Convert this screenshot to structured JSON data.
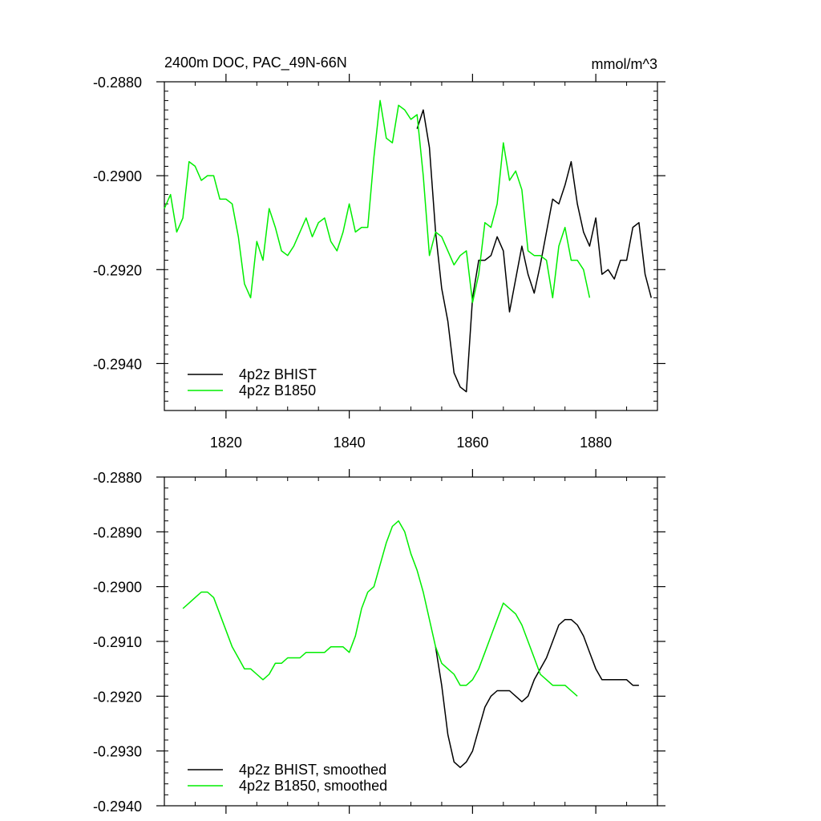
{
  "chart_data": [
    {
      "type": "line",
      "title": "2400m DOC, PAC_49N-66N",
      "title_right": "mmol/m^3",
      "xlim": [
        1810,
        1890
      ],
      "ylim": [
        -0.295,
        -0.288
      ],
      "x_ticks": [
        1820,
        1840,
        1860,
        1880
      ],
      "x_tick_labels": [
        "1820",
        "1840",
        "1860",
        "1880"
      ],
      "y_ticks": [
        -0.288,
        -0.29,
        -0.292,
        -0.294
      ],
      "y_tick_labels": [
        "-0.2880",
        "-0.2900",
        "-0.2920",
        "-0.2940"
      ],
      "legend_position": "bottom-left",
      "series": [
        {
          "name": "4p2z BHIST",
          "color": "#000000",
          "x": [
            1851,
            1852,
            1853,
            1854,
            1855,
            1856,
            1857,
            1858,
            1859,
            1860,
            1861,
            1862,
            1863,
            1864,
            1865,
            1866,
            1867,
            1868,
            1869,
            1870,
            1871,
            1872,
            1873,
            1874,
            1875,
            1876,
            1877,
            1878,
            1879,
            1880,
            1881,
            1882,
            1883,
            1884,
            1885,
            1886,
            1887,
            1888,
            1889
          ],
          "y": [
            -0.289,
            -0.2886,
            -0.2894,
            -0.2912,
            -0.2924,
            -0.2931,
            -0.2942,
            -0.2945,
            -0.2946,
            -0.2926,
            -0.2918,
            -0.2918,
            -0.2917,
            -0.2913,
            -0.2916,
            -0.2929,
            -0.2922,
            -0.2915,
            -0.2921,
            -0.2925,
            -0.2919,
            -0.2912,
            -0.2905,
            -0.2906,
            -0.2902,
            -0.2897,
            -0.2906,
            -0.2912,
            -0.2915,
            -0.2909,
            -0.2921,
            -0.292,
            -0.2922,
            -0.2918,
            -0.2918,
            -0.2911,
            -0.291,
            -0.2921,
            -0.2926
          ]
        },
        {
          "name": "4p2z B1850",
          "color": "#00ee00",
          "x": [
            1810,
            1811,
            1812,
            1813,
            1814,
            1815,
            1816,
            1817,
            1818,
            1819,
            1820,
            1821,
            1822,
            1823,
            1824,
            1825,
            1826,
            1827,
            1828,
            1829,
            1830,
            1831,
            1832,
            1833,
            1834,
            1835,
            1836,
            1837,
            1838,
            1839,
            1840,
            1841,
            1842,
            1843,
            1844,
            1845,
            1846,
            1847,
            1848,
            1849,
            1850,
            1851,
            1852,
            1853,
            1854,
            1855,
            1856,
            1857,
            1858,
            1859,
            1860,
            1861,
            1862,
            1863,
            1864,
            1865,
            1866,
            1867,
            1868,
            1869,
            1870,
            1871,
            1872,
            1873,
            1874,
            1875,
            1876,
            1877,
            1878,
            1879
          ],
          "y": [
            -0.2907,
            -0.2904,
            -0.2912,
            -0.2909,
            -0.2897,
            -0.2898,
            -0.2901,
            -0.29,
            -0.29,
            -0.2905,
            -0.2905,
            -0.2906,
            -0.2913,
            -0.2923,
            -0.2926,
            -0.2914,
            -0.2918,
            -0.2907,
            -0.2911,
            -0.2916,
            -0.2917,
            -0.2915,
            -0.2912,
            -0.2909,
            -0.2913,
            -0.291,
            -0.2909,
            -0.2914,
            -0.2916,
            -0.2912,
            -0.2906,
            -0.2912,
            -0.2911,
            -0.2911,
            -0.2896,
            -0.2884,
            -0.2892,
            -0.2893,
            -0.2885,
            -0.2886,
            -0.2888,
            -0.2887,
            -0.29,
            -0.2917,
            -0.2912,
            -0.2913,
            -0.2916,
            -0.2919,
            -0.2917,
            -0.2916,
            -0.2927,
            -0.2921,
            -0.291,
            -0.2911,
            -0.2906,
            -0.2893,
            -0.2901,
            -0.2899,
            -0.2903,
            -0.2916,
            -0.2917,
            -0.2917,
            -0.2918,
            -0.2926,
            -0.2915,
            -0.2911,
            -0.2918,
            -0.2918,
            -0.292,
            -0.2926
          ]
        }
      ]
    },
    {
      "type": "line",
      "xlim": [
        1810,
        1890
      ],
      "ylim": [
        -0.294,
        -0.288
      ],
      "x_ticks": [
        1820,
        1840,
        1860,
        1880
      ],
      "y_ticks": [
        -0.288,
        -0.289,
        -0.29,
        -0.291,
        -0.292,
        -0.293,
        -0.294
      ],
      "y_tick_labels": [
        "-0.2880",
        "-0.2890",
        "-0.2900",
        "-0.2910",
        "-0.2920",
        "-0.2930",
        "-0.2940"
      ],
      "legend_position": "bottom-left",
      "series": [
        {
          "name": "4p2z BHIST, smoothed",
          "color": "#000000",
          "x": [
            1854,
            1855,
            1856,
            1857,
            1858,
            1859,
            1860,
            1861,
            1862,
            1863,
            1864,
            1865,
            1866,
            1867,
            1868,
            1869,
            1870,
            1871,
            1872,
            1873,
            1874,
            1875,
            1876,
            1877,
            1878,
            1879,
            1880,
            1881,
            1882,
            1883,
            1884,
            1885,
            1886,
            1887
          ],
          "y": [
            -0.2911,
            -0.2918,
            -0.2927,
            -0.2932,
            -0.2933,
            -0.2932,
            -0.293,
            -0.2926,
            -0.2922,
            -0.292,
            -0.2919,
            -0.2919,
            -0.2919,
            -0.292,
            -0.2921,
            -0.292,
            -0.2917,
            -0.2915,
            -0.2913,
            -0.291,
            -0.2907,
            -0.2906,
            -0.2906,
            -0.2907,
            -0.2909,
            -0.2912,
            -0.2915,
            -0.2917,
            -0.2917,
            -0.2917,
            -0.2917,
            -0.2917,
            -0.2918,
            -0.2918
          ]
        },
        {
          "name": "4p2z B1850, smoothed",
          "color": "#00ee00",
          "x": [
            1813,
            1814,
            1815,
            1816,
            1817,
            1818,
            1819,
            1820,
            1821,
            1822,
            1823,
            1824,
            1825,
            1826,
            1827,
            1828,
            1829,
            1830,
            1831,
            1832,
            1833,
            1834,
            1835,
            1836,
            1837,
            1838,
            1839,
            1840,
            1841,
            1842,
            1843,
            1844,
            1845,
            1846,
            1847,
            1848,
            1849,
            1850,
            1851,
            1852,
            1853,
            1854,
            1855,
            1856,
            1857,
            1858,
            1859,
            1860,
            1861,
            1862,
            1863,
            1864,
            1865,
            1866,
            1867,
            1868,
            1869,
            1870,
            1871,
            1872,
            1873,
            1874,
            1875,
            1876,
            1877
          ],
          "y": [
            -0.2904,
            -0.2903,
            -0.2902,
            -0.2901,
            -0.2901,
            -0.2902,
            -0.2905,
            -0.2908,
            -0.2911,
            -0.2913,
            -0.2915,
            -0.2915,
            -0.2916,
            -0.2917,
            -0.2916,
            -0.2914,
            -0.2914,
            -0.2913,
            -0.2913,
            -0.2913,
            -0.2912,
            -0.2912,
            -0.2912,
            -0.2912,
            -0.2911,
            -0.2911,
            -0.2911,
            -0.2912,
            -0.2909,
            -0.2904,
            -0.2901,
            -0.29,
            -0.2896,
            -0.2892,
            -0.2889,
            -0.2888,
            -0.289,
            -0.2894,
            -0.2897,
            -0.2901,
            -0.2906,
            -0.2911,
            -0.2914,
            -0.2915,
            -0.2916,
            -0.2918,
            -0.2918,
            -0.2917,
            -0.2915,
            -0.2912,
            -0.2909,
            -0.2906,
            -0.2903,
            -0.2904,
            -0.2905,
            -0.2907,
            -0.291,
            -0.2913,
            -0.2916,
            -0.2917,
            -0.2918,
            -0.2918,
            -0.2918,
            -0.2919,
            -0.292
          ]
        }
      ]
    }
  ]
}
